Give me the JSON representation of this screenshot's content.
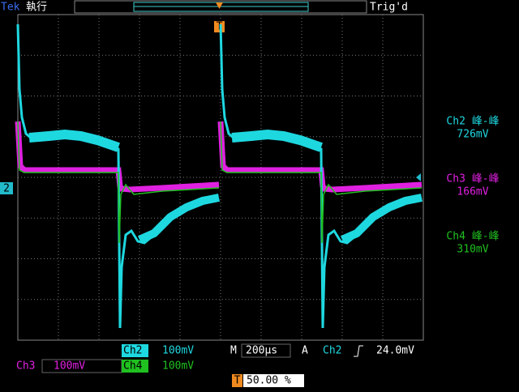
{
  "header": {
    "brand": "Tek",
    "state": "執行",
    "trigger_status": "Trig'd",
    "trigger_marker": "T"
  },
  "ground_marker": "2",
  "measurements": [
    {
      "label": "Ch2 峰-峰",
      "value": "726mV"
    },
    {
      "label": "Ch3 峰-峰",
      "value": "166mV"
    },
    {
      "label": "Ch4 峰-峰",
      "value": "310mV"
    }
  ],
  "status": {
    "ch2": "Ch2",
    "ch2_scale": "100mV",
    "timebase_label": "M",
    "timebase": "200µs",
    "acq": "A",
    "trig_source": "Ch2",
    "trig_level": "24.0mV",
    "ch3": "Ch3",
    "ch3_scale": "100mV",
    "ch4": "Ch4",
    "ch4_scale": "100mV",
    "pos_marker": "T",
    "position": "50.00 %"
  }
}
